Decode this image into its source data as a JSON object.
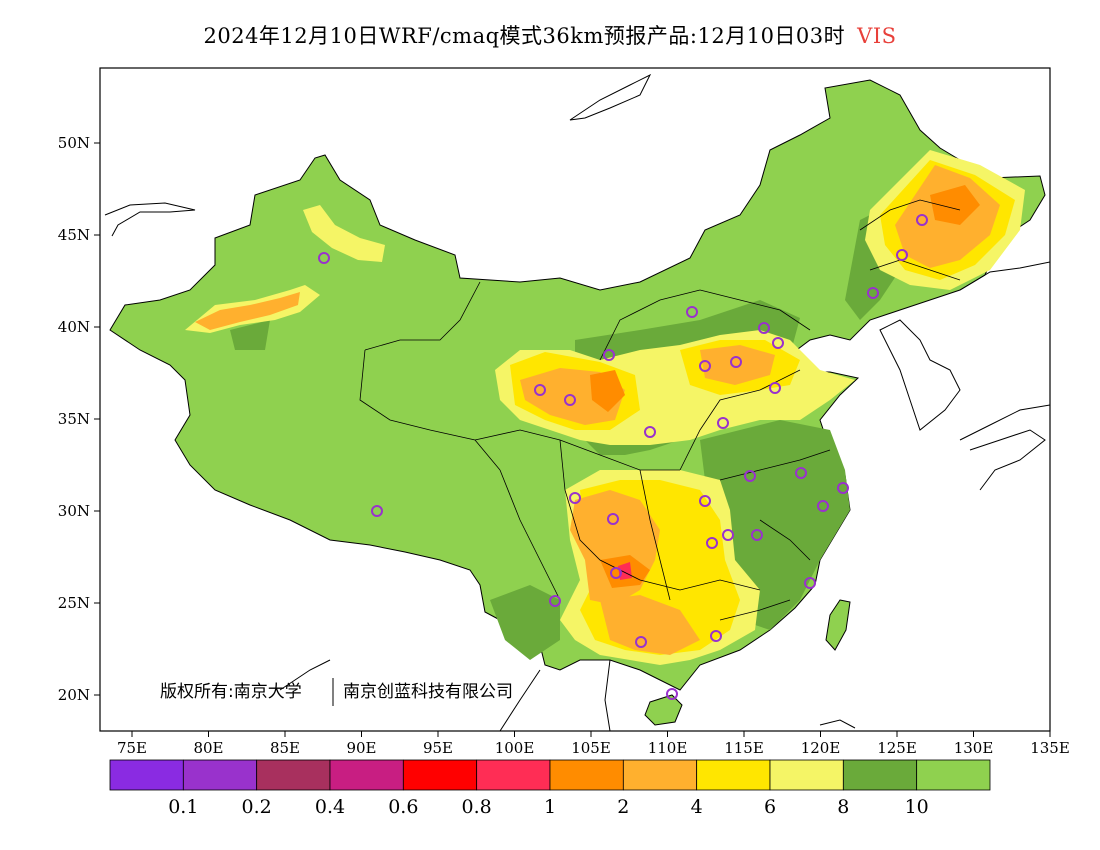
{
  "title": {
    "main": "2024年12月10日WRF/cmaq模式36km预报产品:12月10日03时",
    "variable": "VIS",
    "variable_color": "#e8403a"
  },
  "copyright": {
    "part1": "版权所有:南京大学",
    "part2": "南京创蓝科技有限公司"
  },
  "axes": {
    "lon_ticks": [
      "75E",
      "80E",
      "85E",
      "90E",
      "95E",
      "100E",
      "105E",
      "110E",
      "115E",
      "120E",
      "125E",
      "130E",
      "135E"
    ],
    "lat_ticks": [
      "20N",
      "25N",
      "30N",
      "35N",
      "40N",
      "45N",
      "50N"
    ]
  },
  "colorbar": {
    "colors": [
      "#8a2be2",
      "#9932cc",
      "#a8305e",
      "#c81e82",
      "#ff0000",
      "#ff2d55",
      "#ff8c00",
      "#ffb02e",
      "#ffe600",
      "#f5f566",
      "#6aaa3a",
      "#8fd14f"
    ],
    "labels": [
      "0.1",
      "0.2",
      "0.4",
      "0.6",
      "0.8",
      "1",
      "2",
      "4",
      "6",
      "8",
      "10"
    ]
  },
  "legend_colors": {
    "background_land": "#8fd14f",
    "dark_green": "#6aaa3a",
    "yellow": "#ffe600",
    "light_yellow": "#f5f566",
    "orange": "#ffb02e",
    "dark_orange": "#ff8c00",
    "city_marker": "#9932cc"
  }
}
